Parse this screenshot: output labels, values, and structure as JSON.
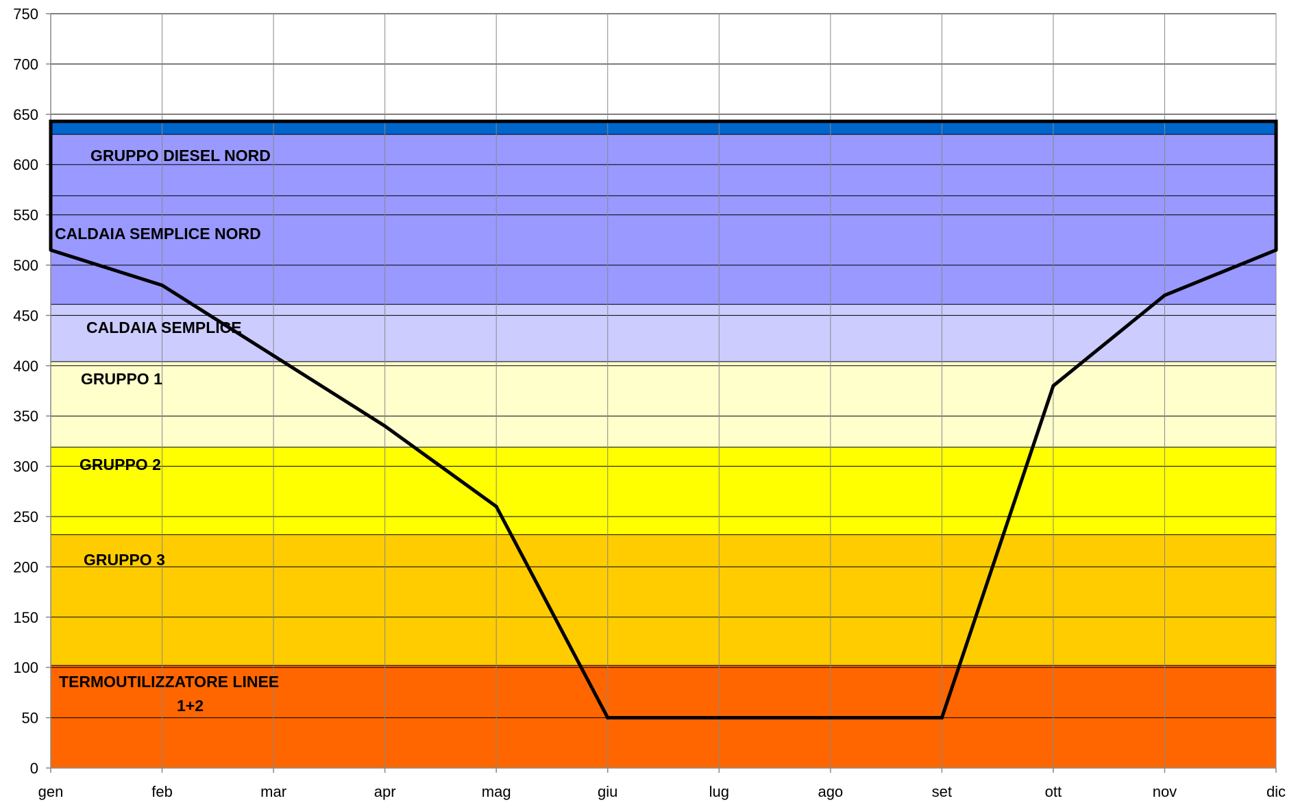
{
  "chart_data": {
    "type": "area",
    "title": "",
    "xlabel": "",
    "ylabel": "",
    "categories": [
      "gen",
      "feb",
      "mar",
      "apr",
      "mag",
      "giu",
      "lug",
      "ago",
      "set",
      "ott",
      "nov",
      "dic"
    ],
    "yticks": [
      0,
      50,
      100,
      150,
      200,
      250,
      300,
      350,
      400,
      450,
      500,
      550,
      600,
      650,
      700,
      750
    ],
    "ylim": [
      0,
      750
    ],
    "grid": true,
    "bands": [
      {
        "label": "TERMOUTILIZZATORE LINEE\n1+2",
        "from": 0,
        "to": 102,
        "color": "#ff6600"
      },
      {
        "label": "GRUPPO 3",
        "from": 102,
        "to": 232,
        "color": "#ffcc00"
      },
      {
        "label": "GRUPPO 2",
        "from": 232,
        "to": 319,
        "color": "#ffff00"
      },
      {
        "label": "GRUPPO 1",
        "from": 319,
        "to": 404,
        "color": "#ffffcc"
      },
      {
        "label": "CALDAIA SEMPLICE",
        "from": 404,
        "to": 461,
        "color": "#ccccff"
      },
      {
        "label": "CALDAIA SEMPLICE NORD",
        "from": 461,
        "to": 569,
        "color": "#9999ff"
      },
      {
        "label": "GRUPPO DIESEL NORD",
        "from": 569,
        "to": 630,
        "color": "#9999ff"
      },
      {
        "label": "",
        "from": 630,
        "to": 643,
        "color": "#0066cc"
      }
    ],
    "series": [
      {
        "values": [
          515,
          480,
          410,
          340,
          260,
          50,
          50,
          50,
          50,
          380,
          470,
          515
        ],
        "color": "#000000"
      }
    ],
    "outline": {
      "top": 643,
      "left_bottom": 515,
      "right_bottom": 515,
      "color": "#000000"
    }
  }
}
